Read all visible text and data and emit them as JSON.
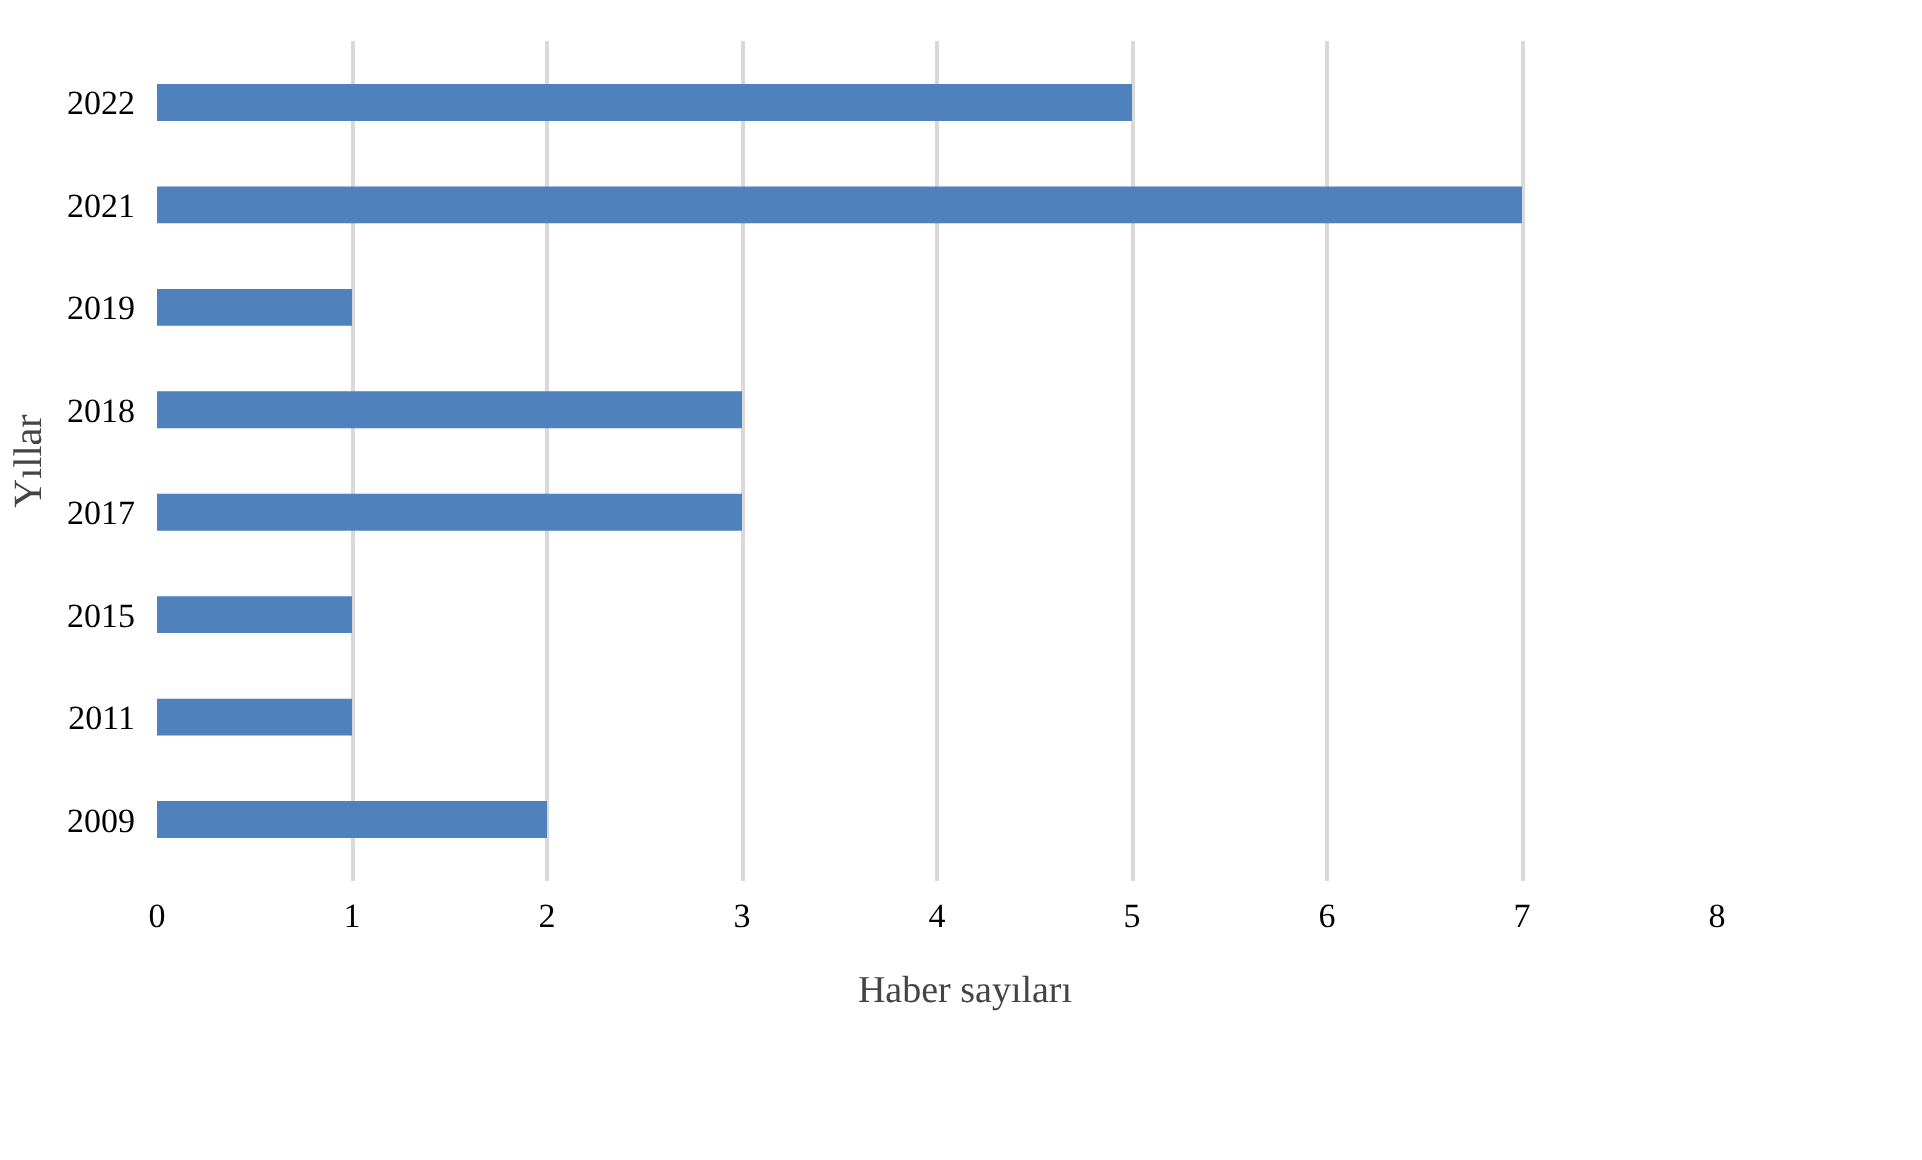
{
  "chart_data": {
    "type": "bar",
    "orientation": "horizontal",
    "ylabel": "Yıllar",
    "categories": [
      "2022",
      "2021",
      "2019",
      "2018",
      "2017",
      "2015",
      "2011",
      "2009"
    ],
    "series": [
      {
        "name": "Haber sayıları",
        "color": "#4f81bd",
        "values": [
          5,
          7,
          1,
          3,
          3,
          1,
          1,
          2
        ]
      }
    ],
    "xlim": [
      0,
      8
    ],
    "xticks": [
      0,
      1,
      2,
      3,
      4,
      5,
      6,
      7,
      8
    ],
    "grid": "x",
    "legend": "bottom"
  }
}
